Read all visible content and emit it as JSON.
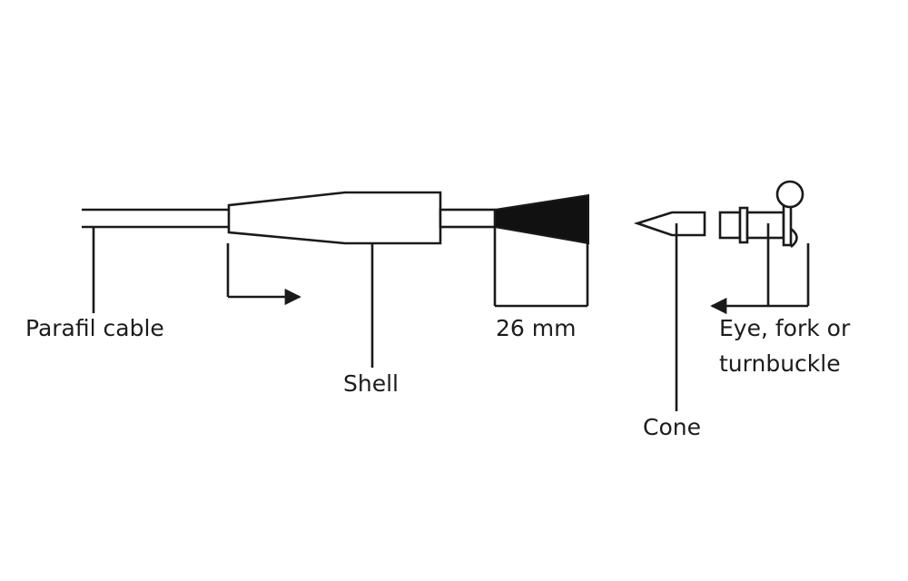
{
  "labels": {
    "parafil_cable": "Parafil cable",
    "shell": "Shell",
    "dimension": "26 mm",
    "fitting_line1": "Eye, fork or",
    "fitting_line2": "turnbuckle",
    "cone": "Cone"
  },
  "colors": {
    "ink": "#1a1a1a",
    "background": "#ffffff"
  }
}
